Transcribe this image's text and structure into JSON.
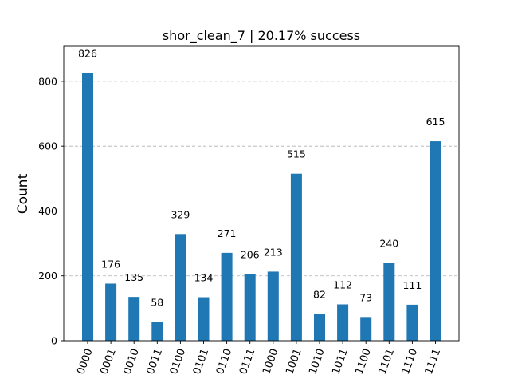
{
  "chart_data": {
    "type": "bar",
    "title": "shor_clean_7 | 20.17% success",
    "xlabel": "",
    "ylabel": "Count",
    "categories": [
      "0000",
      "0001",
      "0010",
      "0011",
      "0100",
      "0101",
      "0110",
      "0111",
      "1000",
      "1001",
      "1010",
      "1011",
      "1100",
      "1101",
      "1110",
      "1111"
    ],
    "values": [
      826,
      176,
      135,
      58,
      329,
      134,
      271,
      206,
      213,
      515,
      82,
      112,
      73,
      240,
      111,
      615
    ],
    "yticks": [
      0,
      200,
      400,
      600,
      800
    ],
    "ylim": [
      0,
      908
    ],
    "grid": "y-dashed",
    "bar_color": "#1f77b4"
  }
}
